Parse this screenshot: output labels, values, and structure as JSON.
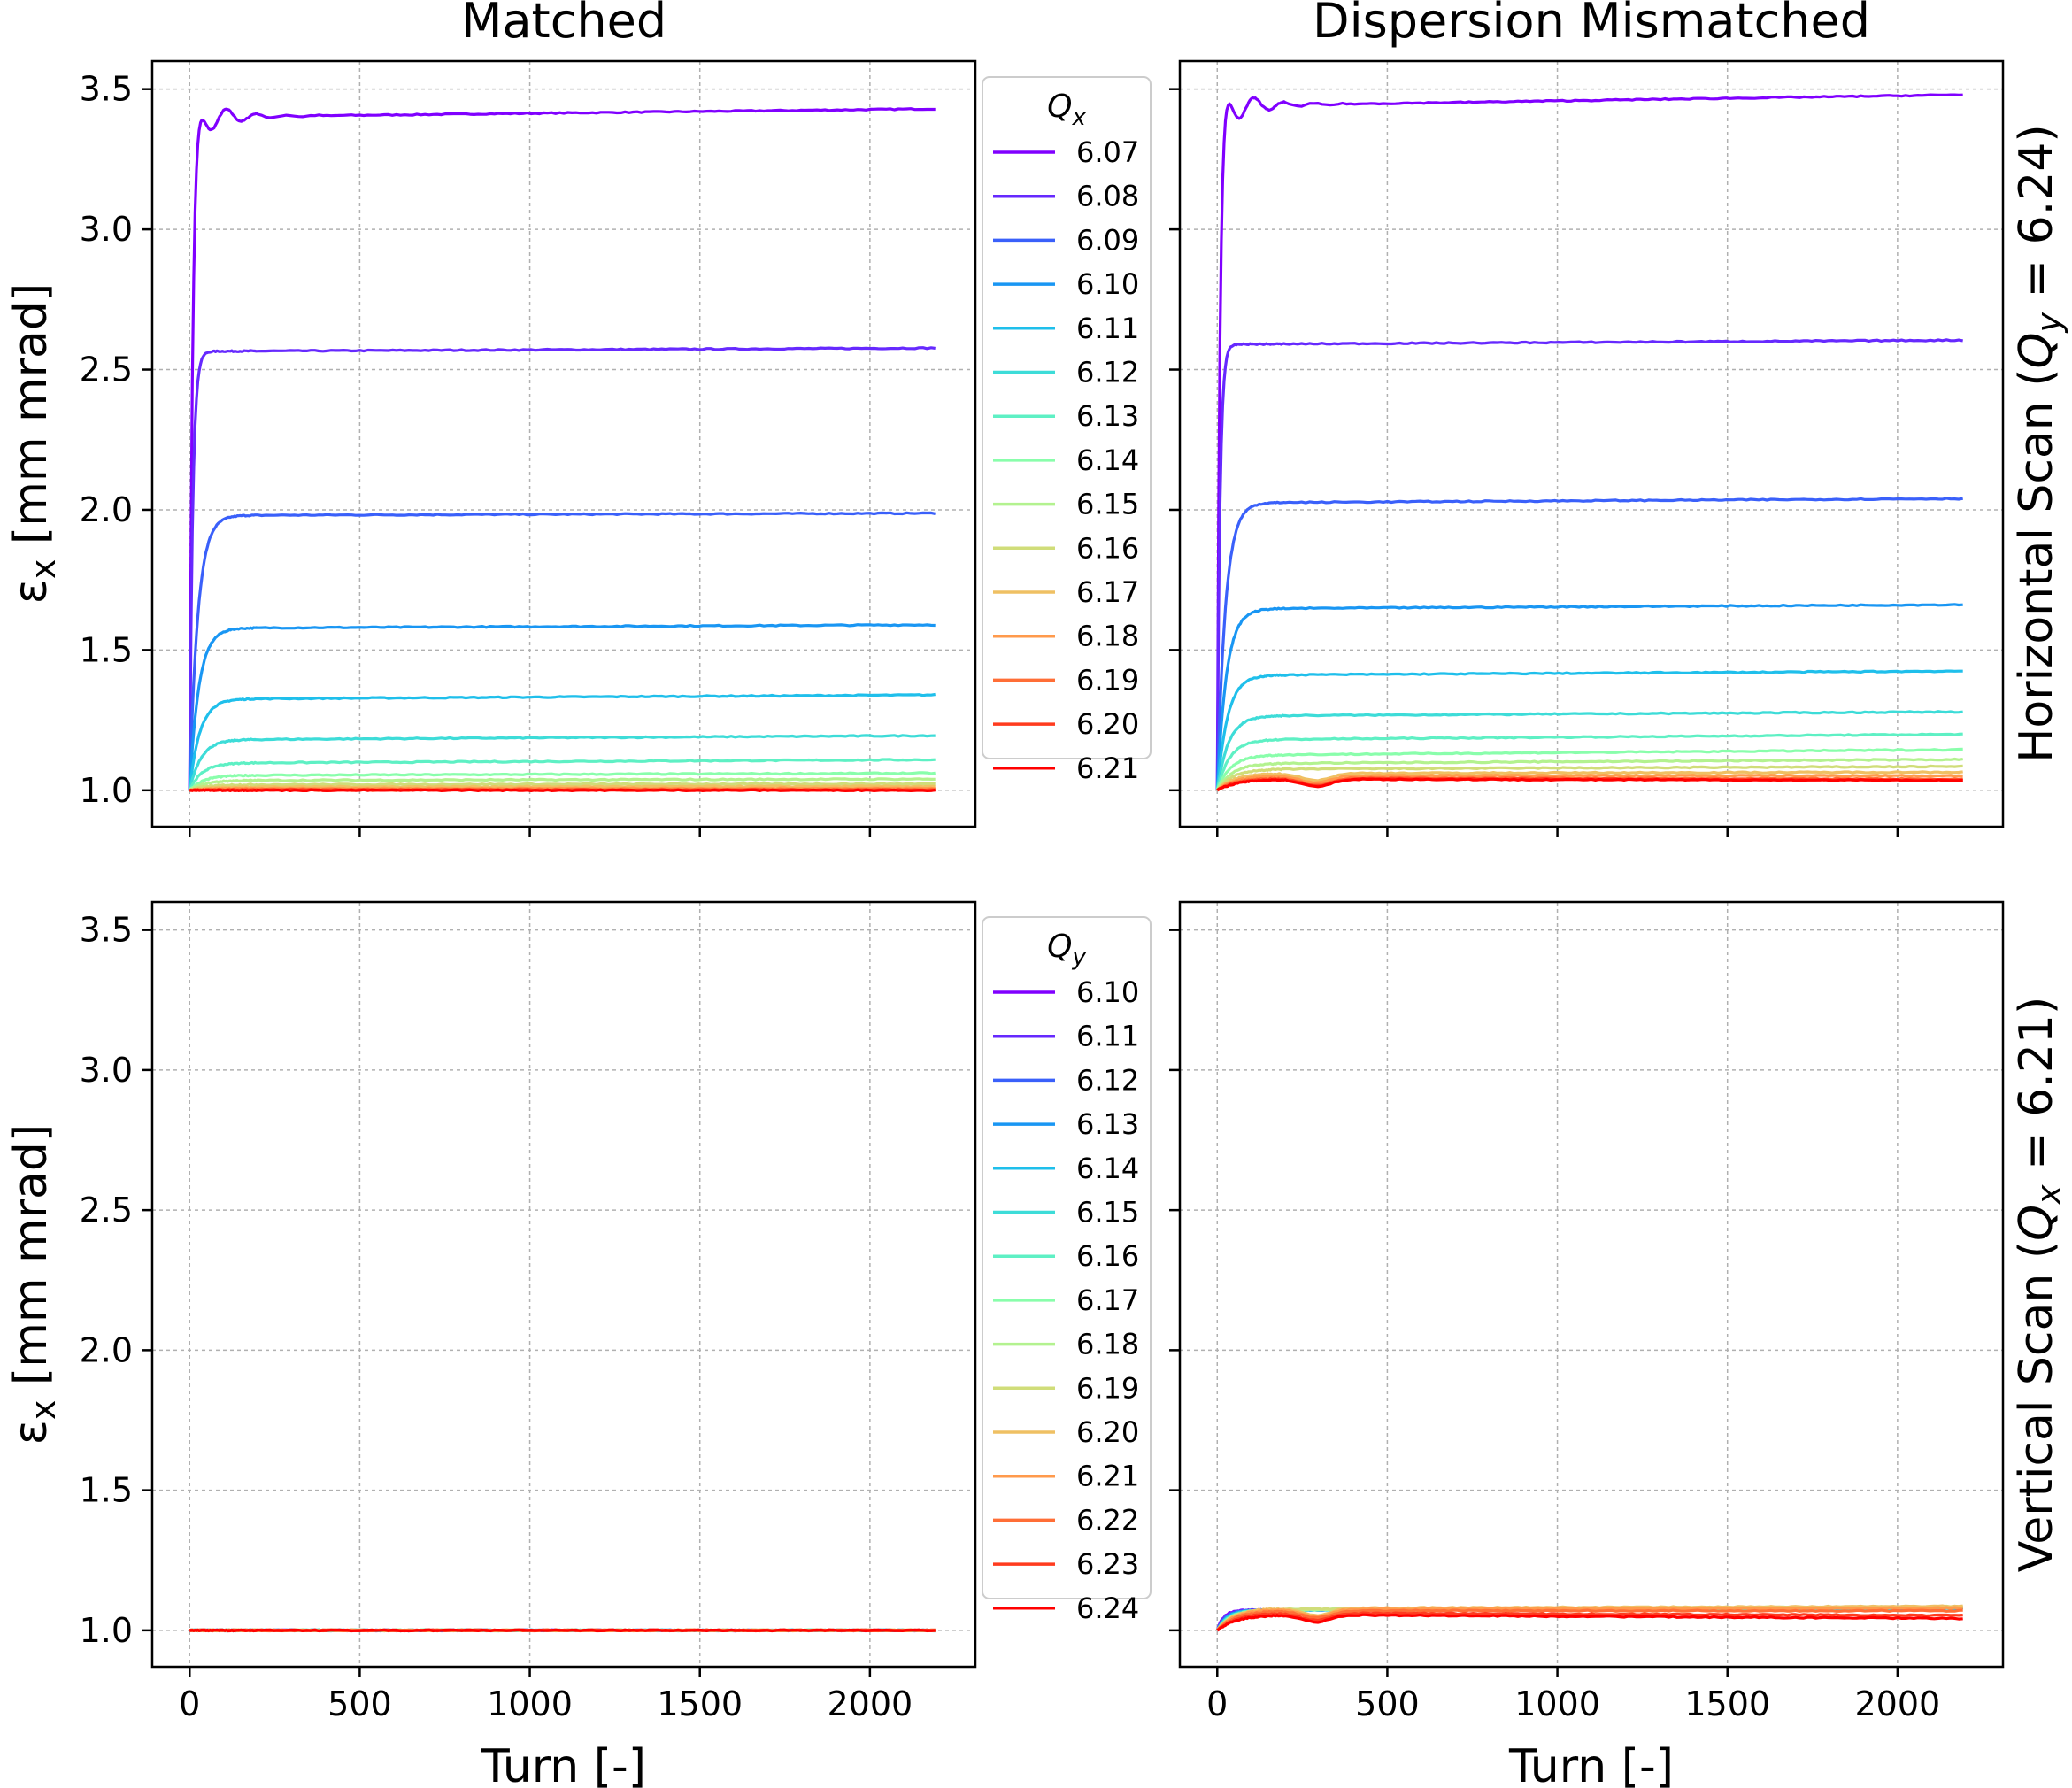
{
  "chart_data": {
    "type": "line",
    "layout": "2x2 grid",
    "column_titles": [
      "Matched",
      "Dispersion Mismatched"
    ],
    "row_labels": [
      {
        "prefix": "Horizontal Scan (",
        "var": "Q",
        "sub": "y",
        "suffix": " = 6.24)"
      },
      {
        "prefix": "Vertical Scan (",
        "var": "Q",
        "sub": "x",
        "suffix": " = 6.21)"
      }
    ],
    "xlabel": "Turn [-]",
    "ylabel": {
      "var": "ε",
      "sub": "x",
      "rest": " [mm mrad]"
    },
    "xlim": [
      -110,
      2310
    ],
    "ylim": [
      0.87,
      3.6
    ],
    "xticks": [
      0,
      500,
      1000,
      1500,
      2000
    ],
    "yticks": [
      1.0,
      1.5,
      2.0,
      2.5,
      3.0,
      3.5
    ],
    "ytick_labels": [
      "1.0",
      "1.5",
      "2.0",
      "2.5",
      "3.0",
      "3.5"
    ],
    "grid": true,
    "colormap": "rainbow",
    "legends": [
      {
        "title_var": "Q",
        "title_sub": "x",
        "placement": "right of left panel",
        "entries": [
          "6.07",
          "6.08",
          "6.09",
          "6.10",
          "6.11",
          "6.12",
          "6.13",
          "6.14",
          "6.15",
          "6.16",
          "6.17",
          "6.18",
          "6.19",
          "6.20",
          "6.21"
        ]
      },
      {
        "title_var": "Q",
        "title_sub": "y",
        "placement": "right of left panel",
        "entries": [
          "6.10",
          "6.11",
          "6.12",
          "6.13",
          "6.14",
          "6.15",
          "6.16",
          "6.17",
          "6.18",
          "6.19",
          "6.20",
          "6.21",
          "6.22",
          "6.23",
          "6.24"
        ]
      }
    ],
    "colors": [
      "#8000ff",
      "#6629fe",
      "#3a60fa",
      "#1996f3",
      "#1fbfeb",
      "#3ddcd8",
      "#5ef0c4",
      "#89feab",
      "#b3f28f",
      "#d0dd79",
      "#efc063",
      "#ff9a4c",
      "#ff6e36",
      "#ff3c1f",
      "#ff0000"
    ],
    "panels": [
      {
        "id": "matched-horizontal",
        "plateaus": [
          3.4,
          2.565,
          1.98,
          1.578,
          1.325,
          1.18,
          1.097,
          1.053,
          1.035,
          1.02,
          1.012,
          1.006,
          1.003,
          1.001,
          1.0
        ],
        "drift": [
          0.03,
          0.012,
          0.008,
          0.012,
          0.015,
          0.015,
          0.012,
          0.008,
          0.005,
          0.003,
          0.002,
          0.001,
          0.0,
          0.0,
          0.0
        ]
      },
      {
        "id": "mismatched-horizontal",
        "plateaus": [
          3.44,
          2.59,
          2.025,
          1.647,
          1.41,
          1.265,
          1.18,
          1.125,
          1.095,
          1.075,
          1.06,
          1.052,
          1.045,
          1.042,
          1.04
        ],
        "drift": [
          0.04,
          0.015,
          0.015,
          0.015,
          0.015,
          0.015,
          0.02,
          0.02,
          0.015,
          0.01,
          0.005,
          0.0,
          -0.005,
          -0.005,
          -0.005
        ]
      },
      {
        "id": "matched-vertical",
        "plateaus": [
          1.0,
          1.0,
          1.0,
          1.0,
          1.0,
          1.0,
          1.0,
          1.0,
          1.0,
          1.0,
          1.0,
          1.0,
          1.0,
          1.0,
          1.0
        ],
        "drift": [
          0,
          0,
          0,
          0,
          0,
          0,
          0,
          0,
          0,
          0,
          0,
          0,
          0,
          0,
          0
        ]
      },
      {
        "id": "mismatched-vertical",
        "plateaus": [
          1.072,
          1.072,
          1.072,
          1.072,
          1.072,
          1.072,
          1.073,
          1.073,
          1.074,
          1.075,
          1.078,
          1.075,
          1.07,
          1.063,
          1.057
        ],
        "drift": [
          0.008,
          0.008,
          0.008,
          0.008,
          0.008,
          0.009,
          0.009,
          0.01,
          0.01,
          0.01,
          0.008,
          0.005,
          0.0,
          -0.01,
          -0.015
        ]
      }
    ],
    "x_end": 2200
  }
}
